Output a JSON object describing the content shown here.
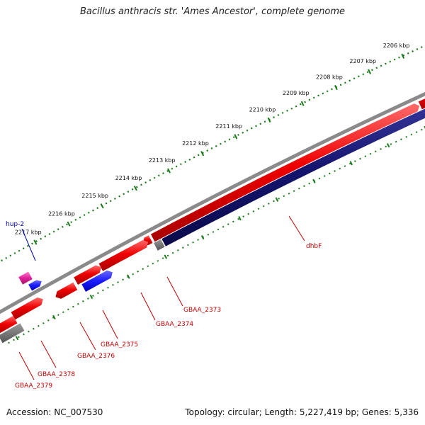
{
  "title": "Bacillus anthracis str. 'Ames Ancestor', complete genome",
  "footer": {
    "accession": "Accession: NC_007530",
    "summary": "Topology: circular; Length: 5,227,419 bp; Genes: 5,336"
  },
  "ruler_ticks": [
    "2206 kbp",
    "2207 kbp",
    "2208 kbp",
    "2209 kbp",
    "2210 kbp",
    "2211 kbp",
    "2212 kbp",
    "2213 kbp",
    "2214 kbp",
    "2215 kbp",
    "2216 kbp",
    "2217 kbp"
  ],
  "gene_labels": [
    {
      "id": "hup",
      "text": "hup-2",
      "color": "#0000b0"
    },
    {
      "id": "dhbf",
      "text": "dhbF",
      "color": "#c00000"
    },
    {
      "id": "gbaa2373",
      "text": "GBAA_2373",
      "color": "#c00000"
    },
    {
      "id": "gbaa2374",
      "text": "GBAA_2374",
      "color": "#c00000"
    },
    {
      "id": "gbaa2375",
      "text": "GBAA_2375",
      "color": "#c00000"
    },
    {
      "id": "gbaa2376",
      "text": "GBAA_2376",
      "color": "#c00000"
    },
    {
      "id": "gbaa2378",
      "text": "GBAA_2378",
      "color": "#c00000"
    },
    {
      "id": "gbaa2379",
      "text": "GBAA_2379",
      "color": "#c00000"
    }
  ],
  "colors": {
    "backbone": "#8a8a8a",
    "gene_forward": "#e00000",
    "gene_dhbf": "#12126e",
    "gene_blue": "#1a1aff",
    "gene_pink": "#e0209a",
    "gene_gray": "#6a6a6a",
    "ruler": "#1a7a1a"
  }
}
